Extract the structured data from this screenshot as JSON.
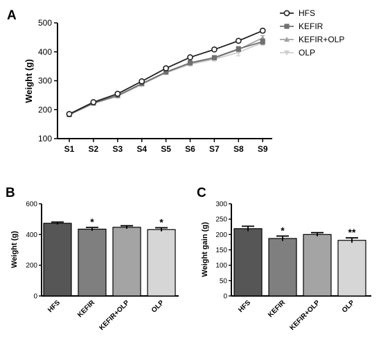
{
  "chart_data": [
    {
      "id": "A",
      "panel_label": "A",
      "type": "line",
      "ylabel": "Weight (g)",
      "xlabel": "",
      "categories": [
        "S1",
        "S2",
        "S3",
        "S4",
        "S5",
        "S6",
        "S7",
        "S8",
        "S9"
      ],
      "ylim": [
        100,
        500
      ],
      "yticks": [
        100,
        200,
        300,
        400,
        500
      ],
      "legend_position": "top-right",
      "series": [
        {
          "name": "HFS",
          "color": "#222222",
          "marker": "open-circle",
          "values": [
            185,
            226,
            255,
            298,
            343,
            381,
            408,
            438,
            473
          ],
          "errors": [
            4,
            4,
            4,
            5,
            5,
            5,
            5,
            6,
            7
          ]
        },
        {
          "name": "KEFIR",
          "color": "#707070",
          "marker": "square",
          "values": [
            183,
            223,
            249,
            290,
            330,
            362,
            380,
            410,
            435
          ],
          "errors": [
            4,
            4,
            4,
            5,
            5,
            6,
            6,
            8,
            9
          ]
        },
        {
          "name": "KEFIR+OLP",
          "color": "#a2a2a2",
          "marker": "triangle",
          "values": [
            184,
            222,
            248,
            289,
            329,
            360,
            378,
            408,
            448
          ],
          "errors": [
            4,
            4,
            4,
            5,
            5,
            6,
            6,
            8,
            8
          ]
        },
        {
          "name": "OLP",
          "color": "#cfcfcf",
          "marker": "triangle-down",
          "values": [
            182,
            221,
            246,
            287,
            327,
            357,
            374,
            398,
            432
          ],
          "errors": [
            4,
            4,
            4,
            5,
            5,
            6,
            6,
            12,
            9
          ]
        }
      ]
    },
    {
      "id": "B",
      "panel_label": "B",
      "type": "bar",
      "ylabel": "Weight (g)",
      "categories": [
        "HFS",
        "KEFIR",
        "KEFIR+OLP",
        "OLP"
      ],
      "values": [
        473,
        435,
        447,
        432
      ],
      "errors": [
        8,
        11,
        10,
        12
      ],
      "colors": [
        "#565656",
        "#7f7f7f",
        "#a4a4a4",
        "#d6d6d6"
      ],
      "significance": [
        "",
        "*",
        "",
        "*"
      ],
      "ylim": [
        0,
        600
      ],
      "yticks": [
        0,
        200,
        400,
        600
      ]
    },
    {
      "id": "C",
      "panel_label": "C",
      "type": "bar",
      "ylabel": "Weight gain (g)",
      "categories": [
        "HFS",
        "KEFIR",
        "KEFIR+OLP",
        "OLP"
      ],
      "values": [
        219,
        187,
        200,
        181
      ],
      "errors": [
        8,
        8,
        6,
        8
      ],
      "colors": [
        "#565656",
        "#7f7f7f",
        "#a4a4a4",
        "#d6d6d6"
      ],
      "significance": [
        "",
        "*",
        "",
        "**"
      ],
      "ylim": [
        0,
        300
      ],
      "yticks": [
        0,
        50,
        100,
        150,
        200,
        250,
        300
      ]
    }
  ]
}
